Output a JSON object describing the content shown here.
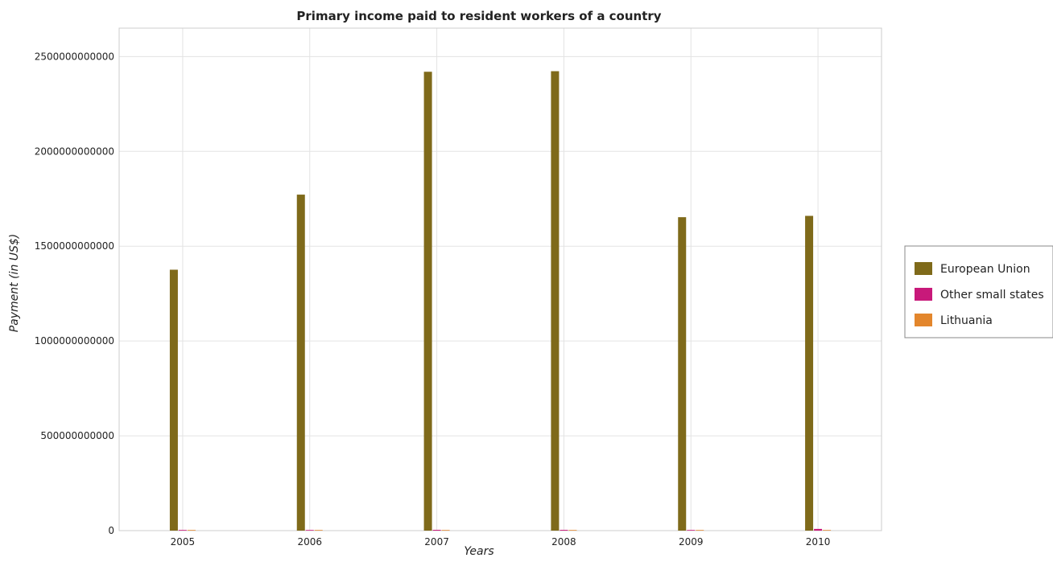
{
  "chart_data": {
    "type": "bar",
    "title": "Primary income paid to resident workers of a country",
    "xlabel": "Years",
    "ylabel": "Payment (in US$)",
    "categories": [
      "2005",
      "2006",
      "2007",
      "2008",
      "2009",
      "2010"
    ],
    "ylim": [
      0,
      2650000000000
    ],
    "yticks": [
      0,
      500000000000,
      1000000000000,
      1500000000000,
      2000000000000,
      2500000000000
    ],
    "ytick_labels": [
      "0",
      "500000000000",
      "1000000000000",
      "1500000000000",
      "2000000000000",
      "2500000000000"
    ],
    "grid": true,
    "legend_position": "right",
    "series": [
      {
        "name": "European Union",
        "color": "#7f6a1a",
        "values": [
          1376000000000,
          1772000000000,
          2420000000000,
          2423000000000,
          1653000000000,
          1660000000000
        ]
      },
      {
        "name": "Other small states",
        "color": "#c8197a",
        "values": [
          3500000000,
          3000000000,
          4200000000,
          4000000000,
          3000000000,
          9000000000
        ]
      },
      {
        "name": "Lithuania",
        "color": "#e3862c",
        "values": [
          1000000000,
          1500000000,
          2500000000,
          3000000000,
          1200000000,
          1500000000
        ]
      }
    ]
  }
}
